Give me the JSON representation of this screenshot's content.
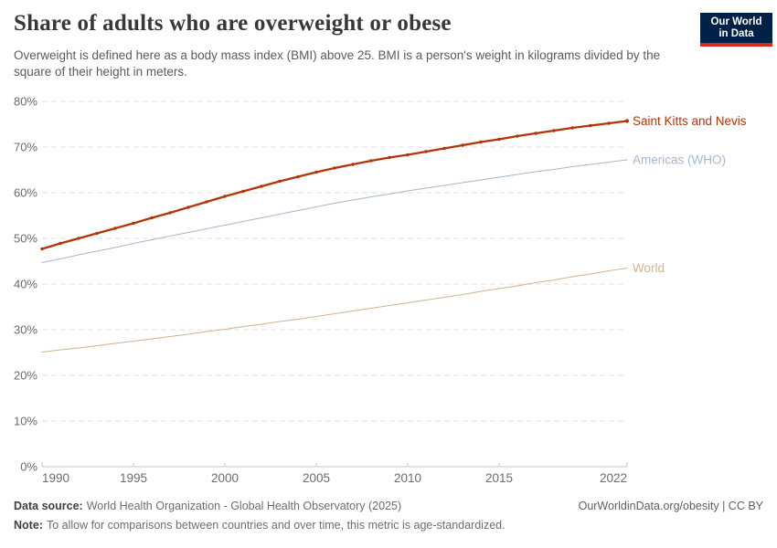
{
  "header": {
    "title": "Share of adults who are overweight or obese",
    "subtitle": "Overweight is defined here as a body mass index (BMI) above 25. BMI is a person's weight in kilograms divided by the square of their height in meters.",
    "logo": {
      "line1": "Our World",
      "line2": "in Data",
      "bg_color": "#002147",
      "accent_color": "#d42b21"
    }
  },
  "footer": {
    "data_source_label": "Data source:",
    "data_source_text": "World Health Organization - Global Health Observatory (2025)",
    "note_label": "Note:",
    "note_text": "To allow for comparisons between countries and over time, this metric is age-standardized.",
    "attribution": "OurWorldinData.org/obesity | CC BY"
  },
  "chart_data": {
    "type": "line",
    "title": "Share of adults who are overweight or obese",
    "xlabel": "",
    "ylabel": "",
    "ylim": [
      0,
      80
    ],
    "y_ticks": [
      0,
      10,
      20,
      30,
      40,
      50,
      60,
      70,
      80
    ],
    "y_tick_suffix": "%",
    "x_ticks": [
      1990,
      1995,
      2000,
      2005,
      2010,
      2015,
      2022
    ],
    "grid": "dashed-horizontal",
    "legend_position": "right-end-labels",
    "x": [
      1990,
      1991,
      1992,
      1993,
      1994,
      1995,
      1996,
      1997,
      1998,
      1999,
      2000,
      2001,
      2002,
      2003,
      2004,
      2005,
      2006,
      2007,
      2008,
      2009,
      2010,
      2011,
      2012,
      2013,
      2014,
      2015,
      2016,
      2017,
      2018,
      2019,
      2020,
      2021,
      2022
    ],
    "series": [
      {
        "name": "Saint Kitts and Nevis",
        "color": "#b13507",
        "markers": true,
        "line_width": 2.3,
        "values": [
          47.7,
          48.9,
          50.0,
          51.1,
          52.2,
          53.3,
          54.5,
          55.6,
          56.8,
          58.0,
          59.2,
          60.3,
          61.4,
          62.5,
          63.5,
          64.5,
          65.4,
          66.2,
          67.0,
          67.7,
          68.3,
          69.0,
          69.7,
          70.4,
          71.1,
          71.7,
          72.4,
          73.0,
          73.6,
          74.2,
          74.7,
          75.2,
          75.7
        ]
      },
      {
        "name": "Americas (WHO)",
        "color": "#a5b8d0",
        "markers": false,
        "line_width": 1.1,
        "values": [
          44.7,
          45.5,
          46.4,
          47.2,
          48.0,
          48.9,
          49.7,
          50.5,
          51.3,
          52.1,
          52.9,
          53.7,
          54.5,
          55.3,
          56.1,
          56.9,
          57.7,
          58.4,
          59.1,
          59.7,
          60.4,
          61.0,
          61.6,
          62.2,
          62.8,
          63.4,
          64.0,
          64.6,
          65.1,
          65.7,
          66.2,
          66.7,
          67.2
        ]
      },
      {
        "name": "World",
        "color": "#d1b294",
        "markers": false,
        "line_width": 1.1,
        "values": [
          25.1,
          25.6,
          26.0,
          26.5,
          27.0,
          27.5,
          28.0,
          28.5,
          29.0,
          29.6,
          30.1,
          30.7,
          31.2,
          31.8,
          32.3,
          32.9,
          33.5,
          34.1,
          34.7,
          35.3,
          35.9,
          36.5,
          37.1,
          37.7,
          38.4,
          39.0,
          39.6,
          40.3,
          40.9,
          41.6,
          42.2,
          42.9,
          43.5
        ]
      }
    ]
  }
}
